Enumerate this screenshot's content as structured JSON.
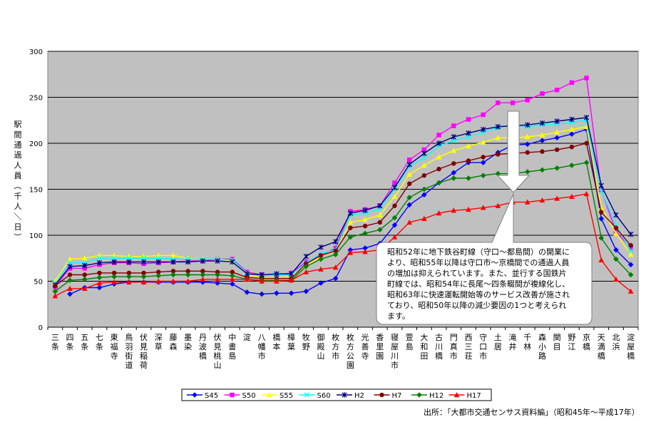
{
  "chart_data": {
    "type": "line",
    "ylabel": "駅間通過人員（千人／日）",
    "ylim": [
      0,
      300
    ],
    "yticks": [
      0,
      50,
      100,
      150,
      200,
      250,
      300
    ],
    "grid": true,
    "plot_background": "#c0c0c0",
    "categories": [
      "三条",
      "四条",
      "五条",
      "七条",
      "東福寺",
      "鳥羽街道",
      "伏見稲荷",
      "深草",
      "藤森",
      "墨染",
      "丹波橋",
      "伏見桃山",
      "中書島",
      "淀",
      "八幡市",
      "橋本",
      "樟葉",
      "牧野",
      "御殿山",
      "枚方市",
      "枚方公園",
      "光善寺",
      "香里園",
      "寝屋川市",
      "萱島",
      "大和田",
      "古川橋",
      "門真市",
      "西三荘",
      "守口市",
      "土居",
      "滝井",
      "千林",
      "森小路",
      "関目",
      "野江",
      "京橋",
      "天満橋",
      "北浜",
      "淀屋橋"
    ],
    "series": [
      {
        "name": "S45",
        "color": "#0000ff",
        "marker": "diamond",
        "values": [
          null,
          36,
          43,
          43,
          47,
          49,
          49,
          49,
          49,
          49,
          49,
          48,
          47,
          38,
          36,
          37,
          37,
          39,
          48,
          53,
          84,
          86,
          91,
          111,
          133,
          144,
          157,
          168,
          179,
          179,
          190,
          198,
          199,
          203,
          206,
          210,
          215,
          118,
          84,
          68
        ]
      },
      {
        "name": "S50",
        "color": "#ff00ff",
        "marker": "square",
        "values": [
          44,
          64,
          64,
          68,
          70,
          70,
          69,
          70,
          71,
          72,
          72,
          74,
          74,
          60,
          57,
          57,
          59,
          71,
          78,
          86,
          126,
          128,
          132,
          157,
          182,
          193,
          209,
          219,
          226,
          231,
          244,
          244,
          247,
          254,
          258,
          266,
          271,
          149,
          104,
          86
        ]
      },
      {
        "name": "S55",
        "color": "#ffff00",
        "marker": "triangle",
        "values": [
          50,
          74,
          75,
          78,
          78,
          77,
          77,
          78,
          78,
          75,
          74,
          74,
          72,
          57,
          54,
          54,
          55,
          67,
          77,
          83,
          114,
          117,
          122,
          142,
          166,
          176,
          185,
          192,
          197,
          201,
          206,
          206,
          207,
          209,
          212,
          215,
          218,
          130,
          102,
          79
        ]
      },
      {
        "name": "S60",
        "color": "#00ffff",
        "marker": "x",
        "values": [
          48,
          70,
          70,
          75,
          75,
          75,
          75,
          75,
          74,
          74,
          74,
          74,
          73,
          59,
          56,
          57,
          57,
          70,
          80,
          84,
          122,
          124,
          129,
          150,
          175,
          184,
          197,
          203,
          207,
          212,
          217,
          220,
          218,
          220,
          221,
          223,
          225,
          148,
          111,
          83
        ]
      },
      {
        "name": "H2",
        "color": "#000080",
        "marker": "star",
        "values": [
          46,
          66,
          67,
          70,
          71,
          71,
          71,
          71,
          71,
          71,
          72,
          72,
          71,
          58,
          57,
          58,
          58,
          77,
          87,
          93,
          124,
          127,
          132,
          152,
          177,
          189,
          200,
          207,
          211,
          215,
          218,
          219,
          220,
          222,
          224,
          226,
          228,
          154,
          122,
          101
        ]
      },
      {
        "name": "H7",
        "color": "#800000",
        "marker": "circle",
        "values": [
          45,
          57,
          57,
          59,
          59,
          59,
          59,
          60,
          61,
          61,
          61,
          60,
          60,
          54,
          53,
          53,
          53,
          69,
          78,
          83,
          108,
          110,
          114,
          132,
          156,
          165,
          172,
          178,
          181,
          185,
          188,
          189,
          190,
          191,
          193,
          196,
          200,
          125,
          108,
          89
        ]
      },
      {
        "name": "H12",
        "color": "#008000",
        "marker": "diamond",
        "values": [
          39,
          51,
          52,
          54,
          55,
          55,
          55,
          56,
          57,
          57,
          57,
          57,
          56,
          52,
          51,
          51,
          51,
          66,
          74,
          79,
          98,
          102,
          106,
          119,
          141,
          150,
          157,
          162,
          162,
          165,
          167,
          167,
          169,
          171,
          173,
          176,
          179,
          97,
          74,
          57
        ]
      },
      {
        "name": "H17",
        "color": "#ff0000",
        "marker": "triangle",
        "values": [
          34,
          42,
          42,
          48,
          49,
          49,
          49,
          50,
          50,
          50,
          52,
          52,
          52,
          52,
          50,
          50,
          51,
          60,
          63,
          65,
          81,
          82,
          84,
          98,
          114,
          118,
          124,
          127,
          128,
          130,
          132,
          136,
          136,
          138,
          140,
          142,
          145,
          73,
          52,
          39
        ]
      }
    ],
    "legend_position": "bottom",
    "annotation": "昭和52年に地下鉄谷町線（守口～都島間）の開業により、昭和55年以降は守口市～京橋間での通過人員の増加は抑えられています。また、並行する国鉄片町線では、昭和54年に長尾～四条畷間が複線化し、昭和63年に快速運転開始等のサービス改善が施されており、昭和50年以降の減少要因の1つと考えられます。"
  },
  "source_note": "出所：「大都市交通センサス資料編」（昭和45年～平成17年）"
}
